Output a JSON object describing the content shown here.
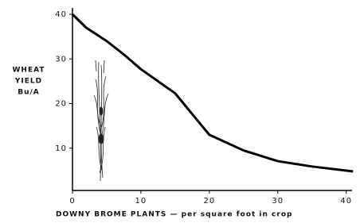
{
  "chart_data": {
    "type": "line",
    "ylabel": [
      "WHEAT",
      "YIELD",
      "Bu/A"
    ],
    "xlabel": "DOWNY BROME PLANTS — per square foot in crop",
    "x": [
      0,
      2,
      5,
      7.5,
      10,
      15,
      20,
      25,
      30,
      35,
      41
    ],
    "series": [
      {
        "color": "#000000",
        "values": [
          40,
          37,
          34,
          31,
          27.7,
          22.3,
          13,
          9.5,
          7.1,
          5.9,
          4.8
        ]
      }
    ],
    "xlim": [
      0,
      40.5
    ],
    "xticks": [
      0,
      10,
      20,
      30,
      40
    ],
    "ylim": [
      0,
      40
    ],
    "yticks": [
      10,
      20,
      30,
      40
    ]
  }
}
